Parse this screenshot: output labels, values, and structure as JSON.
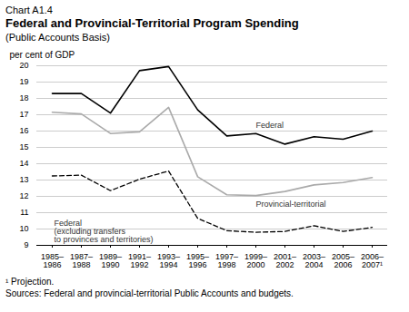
{
  "chart_data": {
    "type": "line",
    "chart_number": "Chart A1.4",
    "title": "Federal and Provincial-Territorial Program Spending",
    "subtitle": "(Public Accounts Basis)",
    "ylabel": "per cent of GDP",
    "categories": [
      "1985–1986",
      "1987–1988",
      "1989–1990",
      "1991–1992",
      "1993–1994",
      "1995–1996",
      "1997–1998",
      "1999–2000",
      "2001–2002",
      "2003–2004",
      "2005–2006",
      "2006–2007¹"
    ],
    "series": [
      {
        "name": "Provincial-territorial",
        "color": "#aaaaaa",
        "line_style": "solid",
        "values": [
          17.15,
          17.05,
          15.85,
          15.95,
          17.45,
          13.2,
          12.1,
          12.05,
          12.3,
          12.7,
          12.85,
          13.15
        ]
      },
      {
        "name": "Federal",
        "color": "#000000",
        "line_style": "solid",
        "values": [
          18.3,
          18.3,
          17.1,
          19.7,
          19.95,
          17.3,
          15.7,
          15.85,
          15.2,
          15.65,
          15.5,
          16.0
        ]
      },
      {
        "name": "Federal\n(excluding transfers\nto provinces and territories)",
        "color": "#000000",
        "line_style": "dashed",
        "values": [
          13.25,
          13.3,
          12.35,
          13.05,
          13.55,
          10.65,
          9.9,
          9.8,
          9.85,
          10.2,
          9.85,
          10.1
        ]
      }
    ],
    "ylim": [
      9,
      20
    ],
    "yticks": [
      9,
      10,
      11,
      12,
      13,
      14,
      15,
      16,
      17,
      18,
      19,
      20
    ],
    "grid": true,
    "footnotes": [
      "¹ Projection.",
      "Sources: Federal and provincial-territorial Public Accounts and budgets."
    ]
  }
}
